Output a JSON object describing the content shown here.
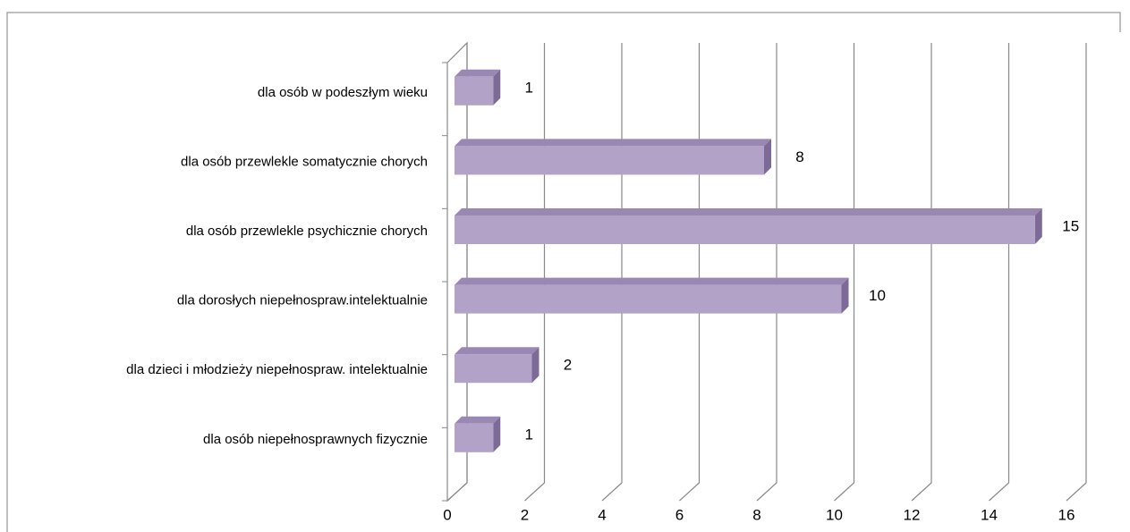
{
  "chart_data": {
    "type": "bar3d_horizontal",
    "categories": [
      "dla osób w podeszłym wieku",
      "dla osób przewlekle somatycznie chorych",
      "dla osób przewlekle psychicznie chorych",
      "dla dorosłych niepełnospraw.intelektualnie",
      "dla dzieci i młodzieży niepełnospraw. intelektualnie",
      "dla osób niepełnosprawnych fizycznie"
    ],
    "values": [
      1,
      8,
      15,
      10,
      2,
      1
    ],
    "color": "#b3a2c7",
    "xlim": [
      0,
      16
    ],
    "xticks": [
      0,
      2,
      4,
      6,
      8,
      10,
      12,
      14,
      16
    ],
    "grid": true
  }
}
